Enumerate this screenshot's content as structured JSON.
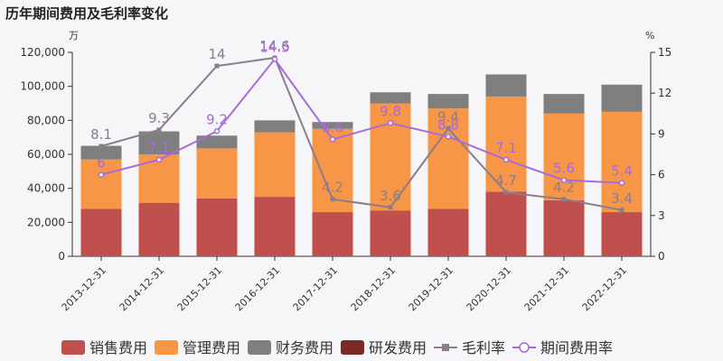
{
  "chart_data": {
    "type": "bar",
    "title": "历年期间费用及毛利率变化",
    "y_left_unit": "万",
    "y_right_unit": "%",
    "y_left_lim": [
      0,
      120000
    ],
    "y_left_ticks": [
      "0",
      "20,000",
      "40,000",
      "60,000",
      "80,000",
      "100,000",
      "120,000"
    ],
    "y_right_lim": [
      0,
      15
    ],
    "y_right_ticks": [
      "0",
      "3",
      "6",
      "9",
      "12",
      "15"
    ],
    "categories": [
      "2013-12-31",
      "2014-12-31",
      "2015-12-31",
      "2016-12-31",
      "2017-12-31",
      "2018-12-31",
      "2019-12-31",
      "2020-12-31",
      "2021-12-31",
      "2022-12-31"
    ],
    "stacked_series": [
      {
        "name": "销售费用",
        "color": "#c0504d",
        "values": [
          28000,
          31500,
          34000,
          35000,
          26000,
          27000,
          28000,
          38000,
          33000,
          26000
        ]
      },
      {
        "name": "管理费用",
        "color": "#f79646",
        "values": [
          29000,
          28500,
          29500,
          38000,
          49000,
          63000,
          59000,
          56000,
          51000,
          59000
        ]
      },
      {
        "name": "财务费用",
        "color": "#7f7f7f",
        "values": [
          8000,
          13500,
          7500,
          7000,
          4000,
          6500,
          8500,
          13000,
          11500,
          16000
        ]
      },
      {
        "name": "研发费用",
        "color": "#7b2a2a",
        "values": [
          0,
          0,
          0,
          0,
          0,
          0,
          0,
          0,
          0,
          0
        ]
      }
    ],
    "line_series": [
      {
        "name": "毛利率",
        "color": "#8b7d8b",
        "marker": "square",
        "values": [
          8.1,
          9.3,
          14,
          14.6,
          4.2,
          3.6,
          9.4,
          4.7,
          4.2,
          3.4
        ],
        "labels": [
          "8.1",
          "9.3",
          "14",
          "14.6",
          "4.2",
          "3.6",
          "9.4",
          "4.7",
          "4.2",
          "3.4"
        ]
      },
      {
        "name": "期间费用率",
        "color": "#a66bdc",
        "marker": "circle",
        "values": [
          6,
          7.1,
          9.2,
          14.5,
          8.6,
          9.8,
          8.8,
          7.1,
          5.6,
          5.4
        ],
        "labels": [
          "6",
          "7.1",
          "9.2",
          "14.5",
          "8.6",
          "9.8",
          "8.8",
          "7.1",
          "5.6",
          "5.4"
        ]
      }
    ],
    "legend": {
      "placement": "bottom"
    },
    "grid": false
  }
}
